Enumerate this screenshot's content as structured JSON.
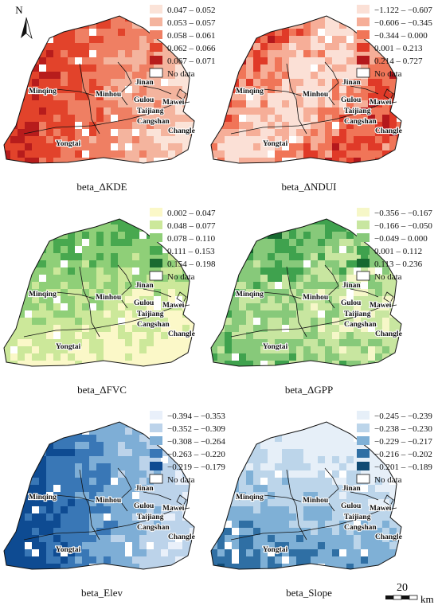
{
  "north_label": "N",
  "no_data_label": "No data",
  "district_labels": [
    "Minqing",
    "Minhou",
    "Jinan",
    "Gulou",
    "Mawei",
    "Taijiang",
    "Cangshan",
    "Changle",
    "Yongtai"
  ],
  "scale_bar": {
    "value": "20",
    "unit": "km"
  },
  "panels": [
    {
      "caption": "beta_ΔKDE",
      "legend": [
        "0.047 – 0.052",
        "0.053 – 0.057",
        "0.058 – 0.061",
        "0.062 – 0.066",
        "0.067 – 0.071"
      ],
      "colors": [
        "#fbe3d8",
        "#f4b49e",
        "#ef7f63",
        "#e2432b",
        "#b71c1c"
      ]
    },
    {
      "caption": "beta_ΔNDUI",
      "legend": [
        "−1.122 – −0.607",
        "−0.606 – −0.345",
        "−0.344 – 0.000",
        "0.001 – 0.213",
        "0.214 – 0.727"
      ],
      "colors": [
        "#fbe0d6",
        "#f6ae98",
        "#f07558",
        "#e03a28",
        "#b4181c"
      ]
    },
    {
      "caption": "beta_ΔFVC",
      "legend": [
        "0.002 – 0.047",
        "0.048 – 0.077",
        "0.078 – 0.110",
        "0.111 – 0.153",
        "0.154 – 0.198"
      ],
      "colors": [
        "#fbf8c8",
        "#cce89a",
        "#8fcf78",
        "#48a84f",
        "#1a6b31"
      ]
    },
    {
      "caption": "beta_ΔGPP",
      "legend": [
        "−0.356 – −0.167",
        "−0.166 – −0.050",
        "−0.049 – 0.000",
        "0.001 – 0.112",
        "0.113 – 0.236"
      ],
      "colors": [
        "#f6f7c8",
        "#c8e6a0",
        "#87c97a",
        "#3fa24e",
        "#16692f"
      ]
    },
    {
      "caption": "beta_Elev",
      "legend": [
        "−0.394 – −0.353",
        "−0.352 – −0.309",
        "−0.308 – −0.264",
        "−0.263 – −0.220",
        "−0.219 – −0.179"
      ],
      "colors": [
        "#e9f0fa",
        "#bcd3ea",
        "#7eaed6",
        "#3977b6",
        "#0e4b92"
      ]
    },
    {
      "caption": "beta_Slope",
      "legend": [
        "−0.245 – −0.239",
        "−0.238 – −0.230",
        "−0.229 – −0.217",
        "−0.216 – −0.202",
        "−0.201 – −0.189"
      ],
      "colors": [
        "#e6eff8",
        "#bcd5ea",
        "#7fb0d6",
        "#2f6fa4",
        "#104a73"
      ]
    }
  ]
}
